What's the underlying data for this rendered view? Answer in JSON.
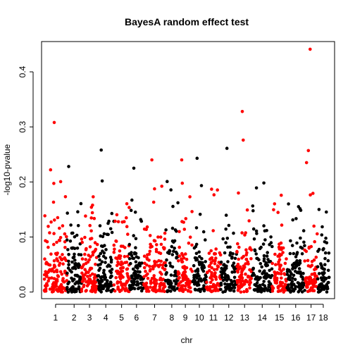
{
  "chart_data": {
    "type": "scatter",
    "title": "BayesA random effect test",
    "xlabel": "chr",
    "ylabel": "-log10-pvalue",
    "ylim": [
      0,
      0.45
    ],
    "yticks": [
      0.0,
      0.1,
      0.2,
      0.3,
      0.4
    ],
    "ytick_labels": [
      "0.0",
      "0.1",
      "0.2",
      "0.3",
      "0.4"
    ],
    "xlim": [
      0.5,
      18.4
    ],
    "xticks": [
      1,
      2,
      3,
      4,
      5,
      6,
      7,
      8,
      9,
      10,
      11,
      12,
      13,
      14,
      15,
      16,
      17,
      18
    ],
    "xtick_labels": [
      "1",
      "2",
      "3",
      "4",
      "5",
      "6",
      "7",
      "8",
      "9",
      "10",
      "11",
      "12",
      "13",
      "14",
      "15",
      "16",
      "17",
      "18"
    ],
    "colors": {
      "odd_chr": "#FF0000",
      "even_chr": "#000000"
    },
    "chromosomes": [
      {
        "chr": 1,
        "x_start": 0.6,
        "x_end": 1.85,
        "n": 140,
        "seed": 11
      },
      {
        "chr": 2,
        "x_start": 1.85,
        "x_end": 2.65,
        "n": 90,
        "seed": 22
      },
      {
        "chr": 3,
        "x_start": 2.65,
        "x_end": 3.55,
        "n": 100,
        "seed": 33
      },
      {
        "chr": 4,
        "x_start": 3.55,
        "x_end": 4.45,
        "n": 100,
        "seed": 44
      },
      {
        "chr": 5,
        "x_start": 4.45,
        "x_end": 5.3,
        "n": 90,
        "seed": 55
      },
      {
        "chr": 6,
        "x_start": 5.3,
        "x_end": 6.1,
        "n": 85,
        "seed": 66
      },
      {
        "chr": 7,
        "x_start": 6.1,
        "x_end": 7.3,
        "n": 120,
        "seed": 77
      },
      {
        "chr": 8,
        "x_start": 7.3,
        "x_end": 8.0,
        "n": 70,
        "seed": 88
      },
      {
        "chr": 9,
        "x_start": 8.0,
        "x_end": 8.8,
        "n": 80,
        "seed": 99
      },
      {
        "chr": 10,
        "x_start": 8.8,
        "x_end": 9.55,
        "n": 80,
        "seed": 110
      },
      {
        "chr": 11,
        "x_start": 9.55,
        "x_end": 10.35,
        "n": 80,
        "seed": 121
      },
      {
        "chr": 12,
        "x_start": 10.35,
        "x_end": 11.25,
        "n": 90,
        "seed": 132
      },
      {
        "chr": 13,
        "x_start": 11.25,
        "x_end": 12.1,
        "n": 85,
        "seed": 143
      },
      {
        "chr": 14,
        "x_start": 12.1,
        "x_end": 13.2,
        "n": 110,
        "seed": 154
      },
      {
        "chr": 15,
        "x_start": 13.2,
        "x_end": 14.0,
        "n": 80,
        "seed": 165
      },
      {
        "chr": 16,
        "x_start": 14.0,
        "x_end": 15.0,
        "n": 100,
        "seed": 176
      },
      {
        "chr": 17,
        "x_start": 15.0,
        "x_end": 15.7,
        "n": 70,
        "seed": 187
      },
      {
        "chr": 18,
        "x_start": 15.7,
        "x_end": 16.35,
        "n": 65,
        "seed": 198
      }
    ],
    "notable_points": [
      {
        "chr": 1,
        "x": 1.15,
        "y": 0.308
      },
      {
        "chr": 1,
        "x": 0.95,
        "y": 0.222
      },
      {
        "chr": 2,
        "x": 1.95,
        "y": 0.228
      },
      {
        "chr": 4,
        "x": 3.75,
        "y": 0.258
      },
      {
        "chr": 6,
        "x": 5.55,
        "y": 0.225
      },
      {
        "chr": 7,
        "x": 6.55,
        "y": 0.24
      },
      {
        "chr": 9,
        "x": 8.2,
        "y": 0.24
      },
      {
        "chr": 10,
        "x": 9.05,
        "y": 0.243
      },
      {
        "chr": 12,
        "x": 10.7,
        "y": 0.261
      },
      {
        "chr": 13,
        "x": 11.55,
        "y": 0.328
      },
      {
        "chr": 13,
        "x": 11.6,
        "y": 0.276
      },
      {
        "chr": 17,
        "x": 15.3,
        "y": 0.441
      },
      {
        "chr": 17,
        "x": 15.2,
        "y": 0.257
      },
      {
        "chr": 17,
        "x": 15.1,
        "y": 0.235
      }
    ]
  }
}
